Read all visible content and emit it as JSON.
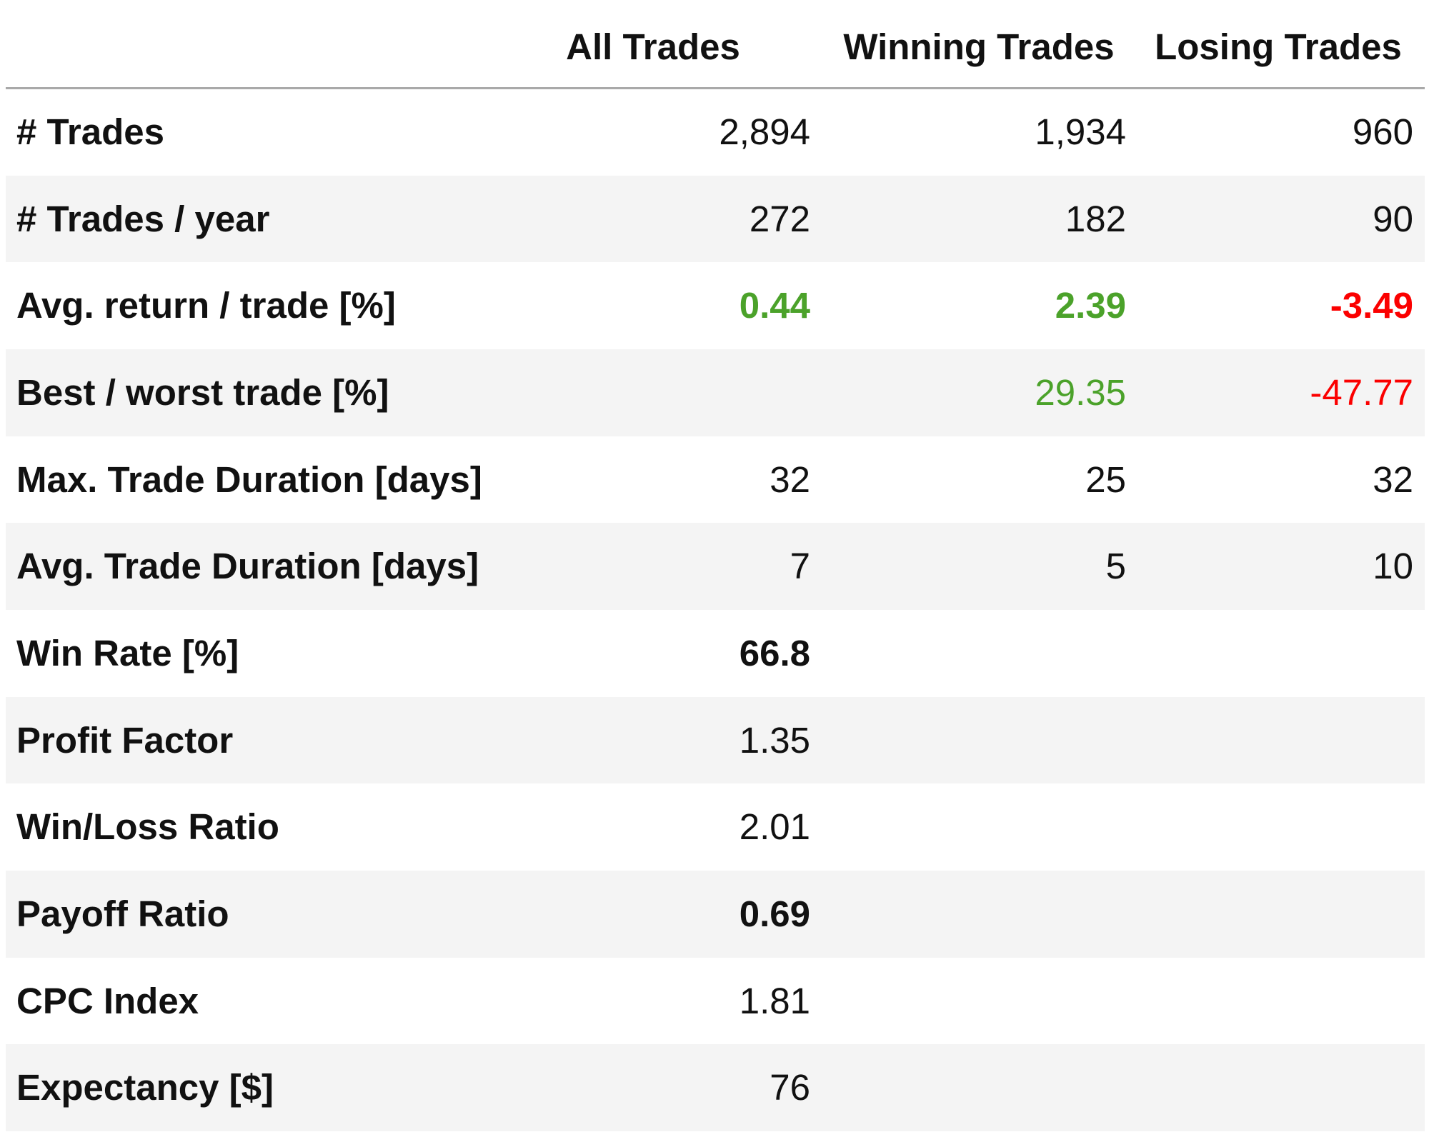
{
  "table": {
    "columns": [
      "All Trades",
      "Winning Trades",
      "Losing Trades"
    ],
    "rows": [
      {
        "label": "# Trades",
        "cells": [
          "2,894",
          "1,934",
          "960"
        ]
      },
      {
        "label": "# Trades / year",
        "cells": [
          "272",
          "182",
          "90"
        ]
      },
      {
        "label": "Avg. return / trade [%]",
        "cells": [
          "0.44",
          "2.39",
          "-3.49"
        ]
      },
      {
        "label": "Best / worst trade [%]",
        "cells": [
          null,
          "29.35",
          "-47.77"
        ]
      },
      {
        "label": "Max. Trade Duration [days]",
        "cells": [
          "32",
          "25",
          "32"
        ]
      },
      {
        "label": "Avg. Trade Duration [days]",
        "cells": [
          "7",
          "5",
          "10"
        ]
      },
      {
        "label": "Win Rate [%]",
        "cells": [
          "66.8",
          null,
          null
        ]
      },
      {
        "label": "Profit Factor",
        "cells": [
          "1.35",
          null,
          null
        ]
      },
      {
        "label": "Win/Loss Ratio",
        "cells": [
          "2.01",
          null,
          null
        ]
      },
      {
        "label": "Payoff Ratio",
        "cells": [
          "0.69",
          null,
          null
        ]
      },
      {
        "label": "CPC Index",
        "cells": [
          "1.81",
          null,
          null
        ]
      },
      {
        "label": "Expectancy [$]",
        "cells": [
          "76",
          null,
          null
        ]
      }
    ]
  }
}
